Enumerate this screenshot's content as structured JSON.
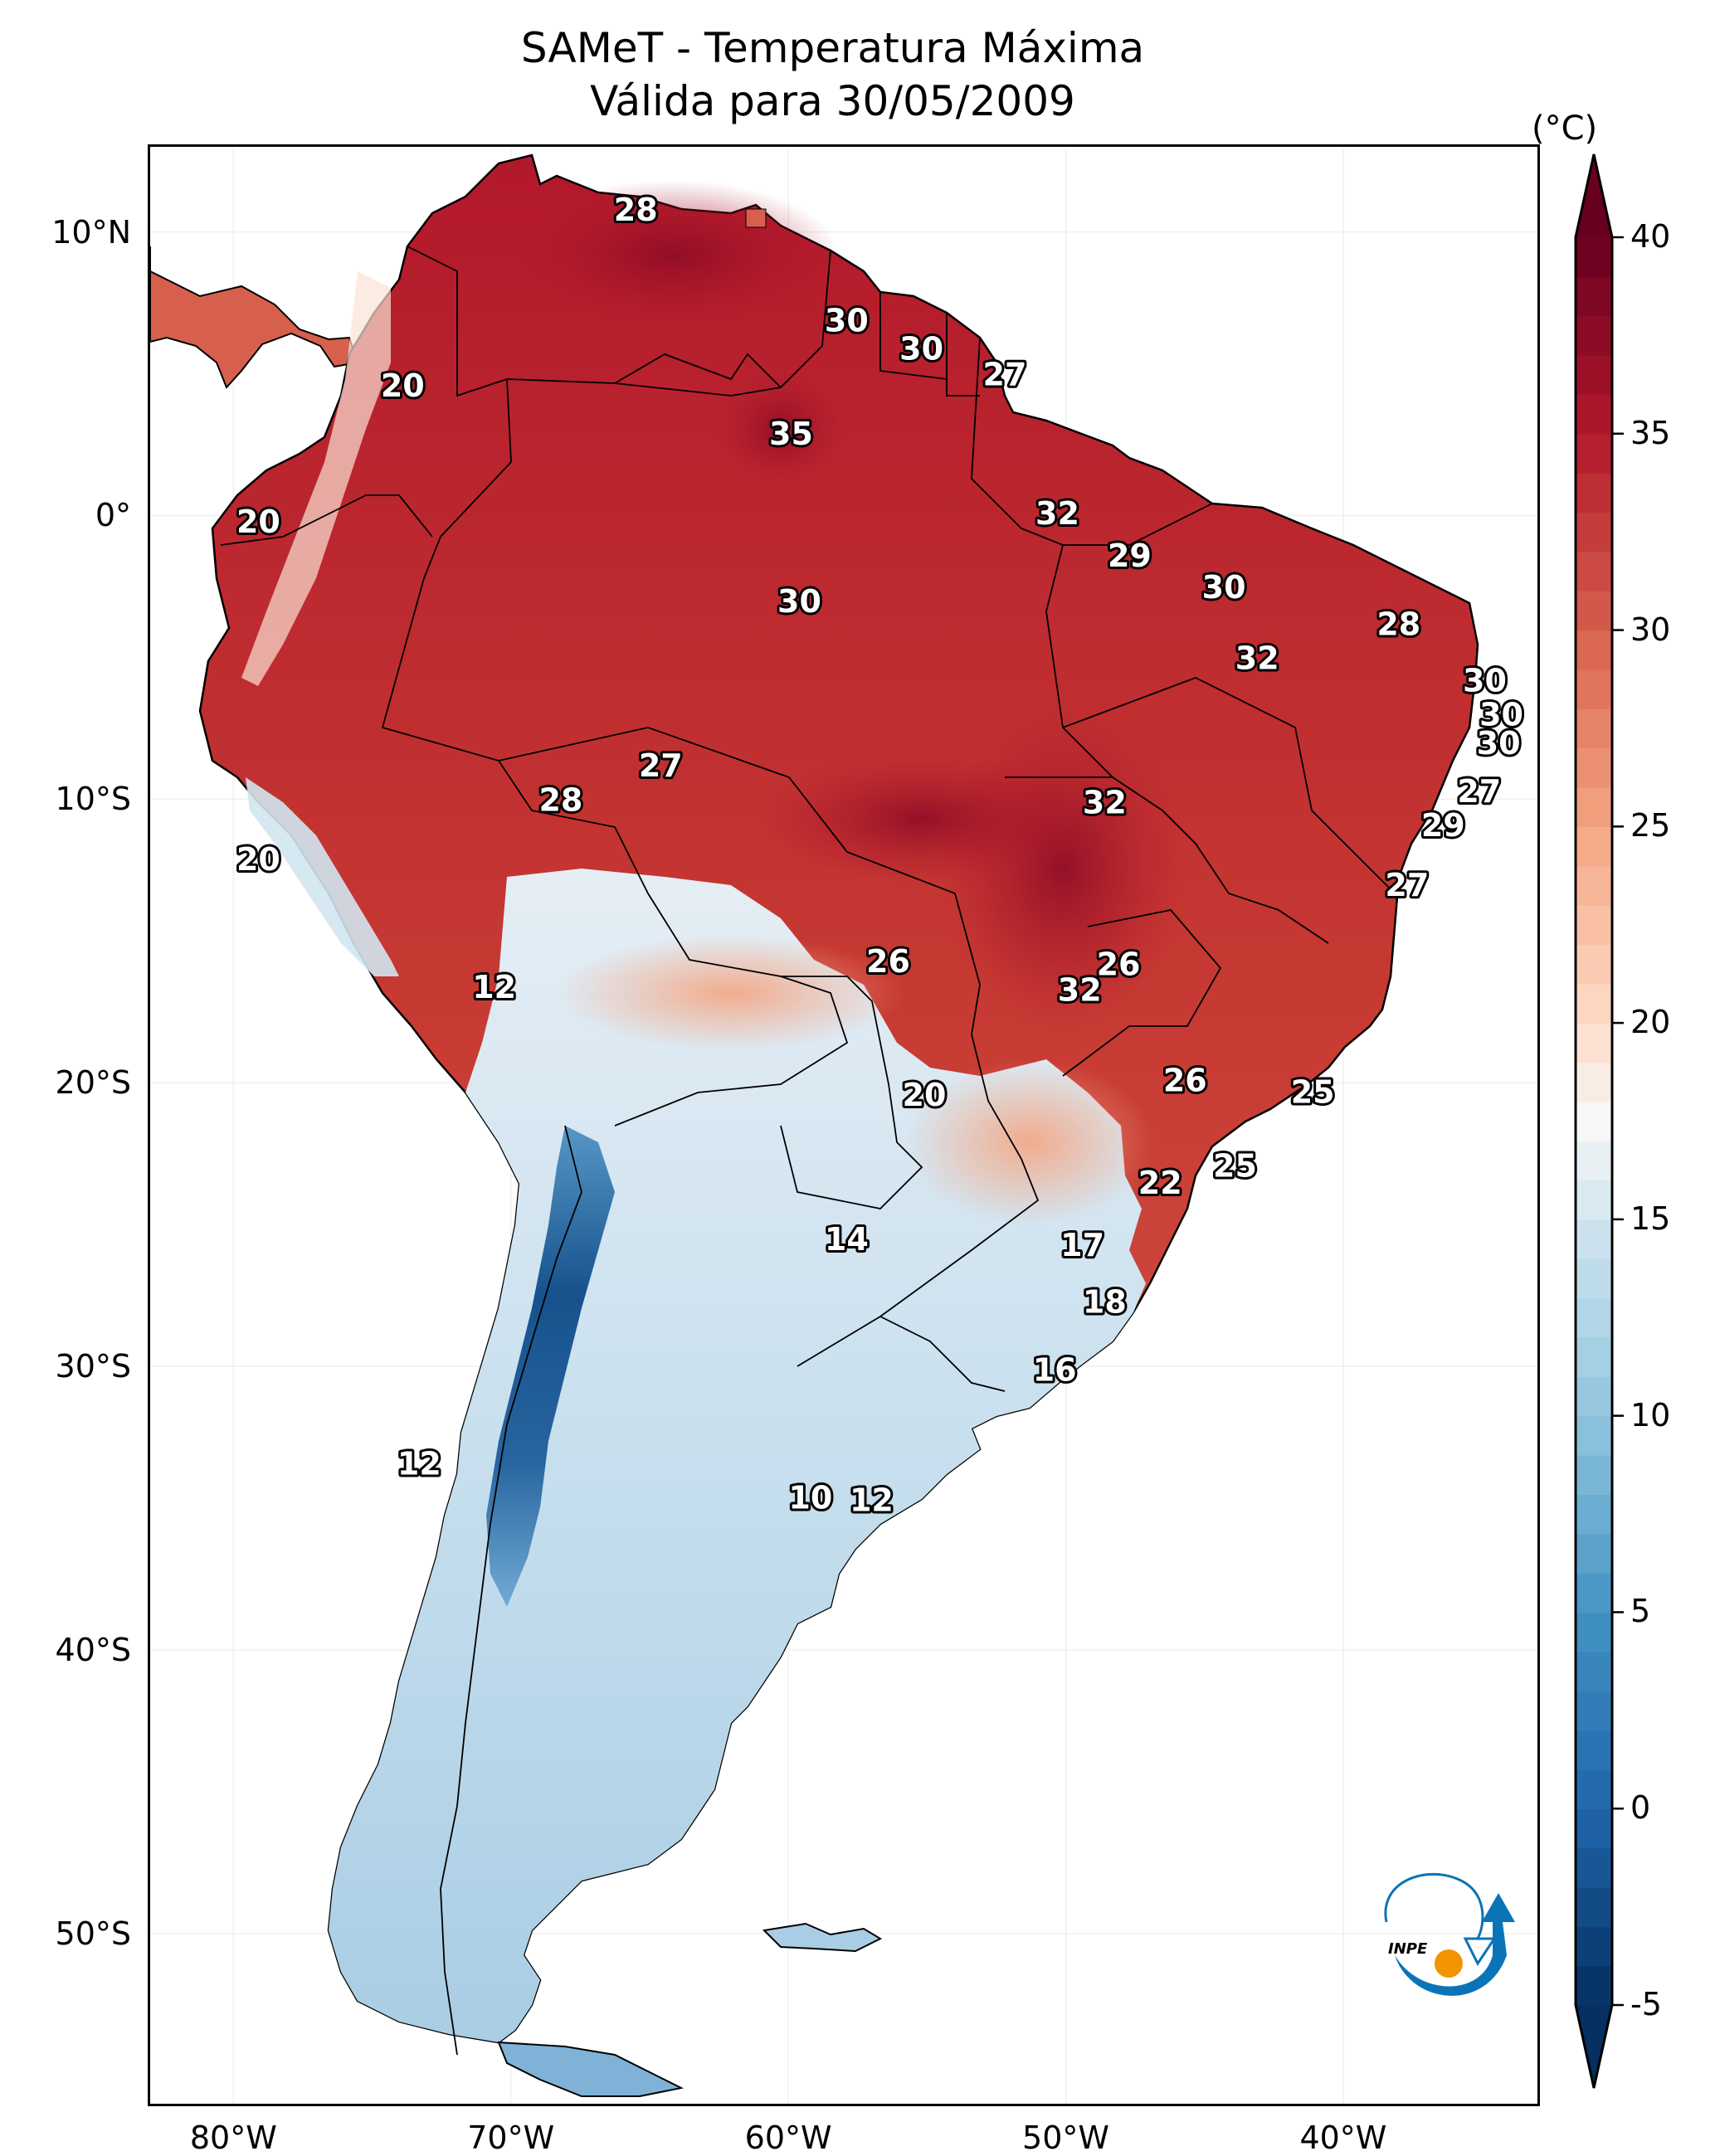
{
  "title": {
    "line1": "SAMeT - Temperatura Máxima",
    "line2": "Válida para 30/05/2009"
  },
  "map": {
    "projection": "PlateCarree",
    "extent": {
      "lon_min": -83,
      "lon_max": -33,
      "lat_min": -56,
      "lat_max": 13
    },
    "x_ticks": [
      {
        "lon": -80,
        "label": "80°W"
      },
      {
        "lon": -70,
        "label": "70°W"
      },
      {
        "lon": -60,
        "label": "60°W"
      },
      {
        "lon": -50,
        "label": "50°W"
      },
      {
        "lon": -40,
        "label": "40°W"
      }
    ],
    "y_ticks": [
      {
        "lat": 10,
        "label": "10°N"
      },
      {
        "lat": 0,
        "label": "0°"
      },
      {
        "lat": -10,
        "label": "10°S"
      },
      {
        "lat": -20,
        "label": "20°S"
      },
      {
        "lat": -30,
        "label": "30°S"
      },
      {
        "lat": -40,
        "label": "40°S"
      },
      {
        "lat": -50,
        "label": "50°S"
      }
    ],
    "contour_labels": [
      {
        "lon": -65.5,
        "lat": 10.7,
        "text": "28"
      },
      {
        "lon": -57.9,
        "lat": 6.8,
        "text": "30"
      },
      {
        "lon": -55.2,
        "lat": 5.8,
        "text": "30"
      },
      {
        "lon": -52.2,
        "lat": 4.9,
        "text": "27"
      },
      {
        "lon": -73.9,
        "lat": 4.5,
        "text": "20"
      },
      {
        "lon": -59.9,
        "lat": 2.8,
        "text": "35"
      },
      {
        "lon": -79.1,
        "lat": -0.3,
        "text": "20"
      },
      {
        "lon": -50.3,
        "lat": 0.0,
        "text": "32"
      },
      {
        "lon": -47.7,
        "lat": -1.5,
        "text": "29"
      },
      {
        "lon": -44.3,
        "lat": -2.6,
        "text": "30"
      },
      {
        "lon": -59.6,
        "lat": -3.1,
        "text": "30"
      },
      {
        "lon": -38.0,
        "lat": -3.9,
        "text": "28"
      },
      {
        "lon": -43.1,
        "lat": -5.1,
        "text": "32"
      },
      {
        "lon": -34.9,
        "lat": -5.9,
        "text": "30"
      },
      {
        "lon": -34.3,
        "lat": -7.1,
        "text": "30"
      },
      {
        "lon": -34.4,
        "lat": -8.1,
        "text": "30"
      },
      {
        "lon": -64.6,
        "lat": -8.9,
        "text": "27"
      },
      {
        "lon": -35.1,
        "lat": -9.8,
        "text": "27"
      },
      {
        "lon": -68.2,
        "lat": -10.1,
        "text": "28"
      },
      {
        "lon": -48.6,
        "lat": -10.2,
        "text": "32"
      },
      {
        "lon": -36.4,
        "lat": -11.0,
        "text": "29"
      },
      {
        "lon": -79.1,
        "lat": -12.2,
        "text": "20"
      },
      {
        "lon": -37.7,
        "lat": -13.1,
        "text": "27"
      },
      {
        "lon": -56.4,
        "lat": -15.8,
        "text": "26"
      },
      {
        "lon": -48.1,
        "lat": -15.9,
        "text": "26"
      },
      {
        "lon": -49.5,
        "lat": -16.8,
        "text": "32"
      },
      {
        "lon": -70.6,
        "lat": -16.7,
        "text": "12"
      },
      {
        "lon": -45.7,
        "lat": -20.0,
        "text": "26"
      },
      {
        "lon": -41.1,
        "lat": -20.4,
        "text": "25"
      },
      {
        "lon": -55.1,
        "lat": -20.5,
        "text": "20"
      },
      {
        "lon": -43.9,
        "lat": -23.0,
        "text": "25"
      },
      {
        "lon": -46.6,
        "lat": -23.6,
        "text": "22"
      },
      {
        "lon": -57.9,
        "lat": -25.6,
        "text": "14"
      },
      {
        "lon": -49.4,
        "lat": -25.8,
        "text": "17"
      },
      {
        "lon": -48.6,
        "lat": -27.8,
        "text": "18"
      },
      {
        "lon": -50.4,
        "lat": -30.2,
        "text": "16"
      },
      {
        "lon": -73.3,
        "lat": -33.5,
        "text": "12"
      },
      {
        "lon": -59.2,
        "lat": -34.7,
        "text": "10"
      },
      {
        "lon": -57.0,
        "lat": -34.8,
        "text": "12"
      }
    ]
  },
  "colorbar": {
    "unit": "(°C)",
    "vmin": -5,
    "vmax": 40,
    "extend": "both",
    "colormap": "RdBu_r",
    "ticks": [
      {
        "value": 40,
        "label": "40"
      },
      {
        "value": 35,
        "label": "35"
      },
      {
        "value": 30,
        "label": "30"
      },
      {
        "value": 25,
        "label": "25"
      },
      {
        "value": 20,
        "label": "20"
      },
      {
        "value": 15,
        "label": "15"
      },
      {
        "value": 10,
        "label": "10"
      },
      {
        "value": 5,
        "label": "5"
      },
      {
        "value": 0,
        "label": "0"
      },
      {
        "value": -5,
        "label": "-5"
      }
    ],
    "stops": [
      {
        "value": -5,
        "color": "#053061"
      },
      {
        "value": 0,
        "color": "#2166ac"
      },
      {
        "value": 5,
        "color": "#4393c3"
      },
      {
        "value": 10,
        "color": "#92c5de"
      },
      {
        "value": 15,
        "color": "#d1e5f0"
      },
      {
        "value": 17.5,
        "color": "#f7f7f7"
      },
      {
        "value": 20,
        "color": "#fddbc7"
      },
      {
        "value": 25,
        "color": "#f4a582"
      },
      {
        "value": 30,
        "color": "#d6604d"
      },
      {
        "value": 35,
        "color": "#b2182b"
      },
      {
        "value": 40,
        "color": "#67001f"
      }
    ]
  },
  "logo": {
    "text": "INPE",
    "colors": {
      "arrow": "#0a74b8",
      "dot": "#f29400"
    }
  }
}
